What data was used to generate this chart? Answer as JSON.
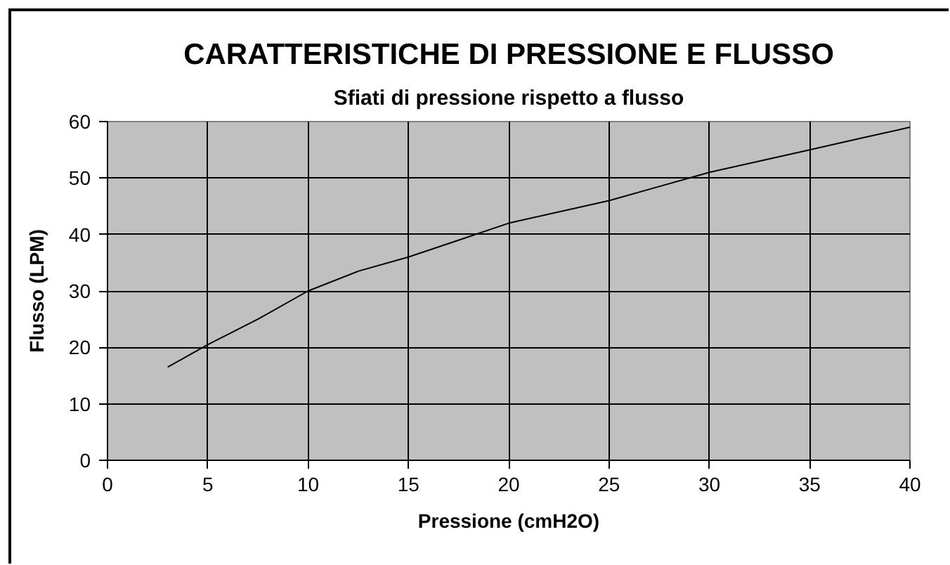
{
  "chart_data": {
    "type": "line",
    "title": "CARATTERISTICHE DI PRESSIONE E FLUSSO",
    "subtitle": "Sfiati di pressione rispetto a flusso",
    "xlabel": "Pressione (cmH2O)",
    "ylabel": "Flusso (LPM)",
    "x": [
      3,
      5,
      7.5,
      10,
      12.5,
      15,
      17.5,
      20,
      22.5,
      25,
      27.5,
      30,
      32.5,
      35,
      37.5,
      40
    ],
    "series": [
      {
        "color": "#000000",
        "values": [
          16.5,
          20.5,
          25,
          30,
          33.5,
          36,
          39,
          42,
          44,
          46,
          48.5,
          51,
          53,
          55,
          57,
          59
        ]
      }
    ],
    "xlim": [
      0,
      40
    ],
    "ylim": [
      0,
      60
    ],
    "xticks": [
      0,
      5,
      10,
      15,
      20,
      25,
      30,
      35,
      40
    ],
    "yticks": [
      0,
      10,
      20,
      30,
      40,
      50,
      60
    ],
    "grid": true,
    "line_style": "solid"
  }
}
